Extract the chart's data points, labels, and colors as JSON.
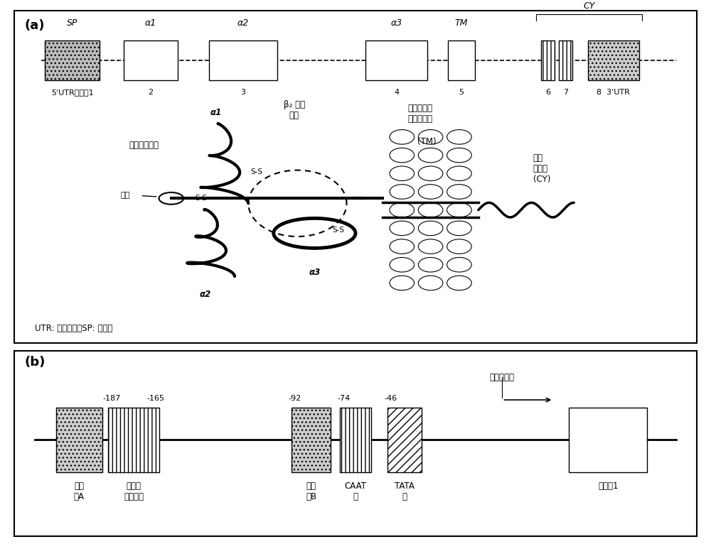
{
  "title_a": "(a)",
  "title_b": "(b)",
  "bg_color": "#ffffff",
  "footnote": "UTR: 非翻译区，SP: 信号肽",
  "extracell_label": "细胞外结构域",
  "beta2_label": "β₂ 微球\n蛋白",
  "membrane_label": "细胞膜结合\n跨膜结构域",
  "tm_label": "(TM)",
  "cytoplasm_label": "胞浆\n结构域\n(CY)",
  "alpha1_label": "α1",
  "alpha2_label": "α2",
  "alpha3_label": "α3",
  "glycan_label": "糖链",
  "ss_label": "S-S",
  "transcription_label": "转录起始点"
}
